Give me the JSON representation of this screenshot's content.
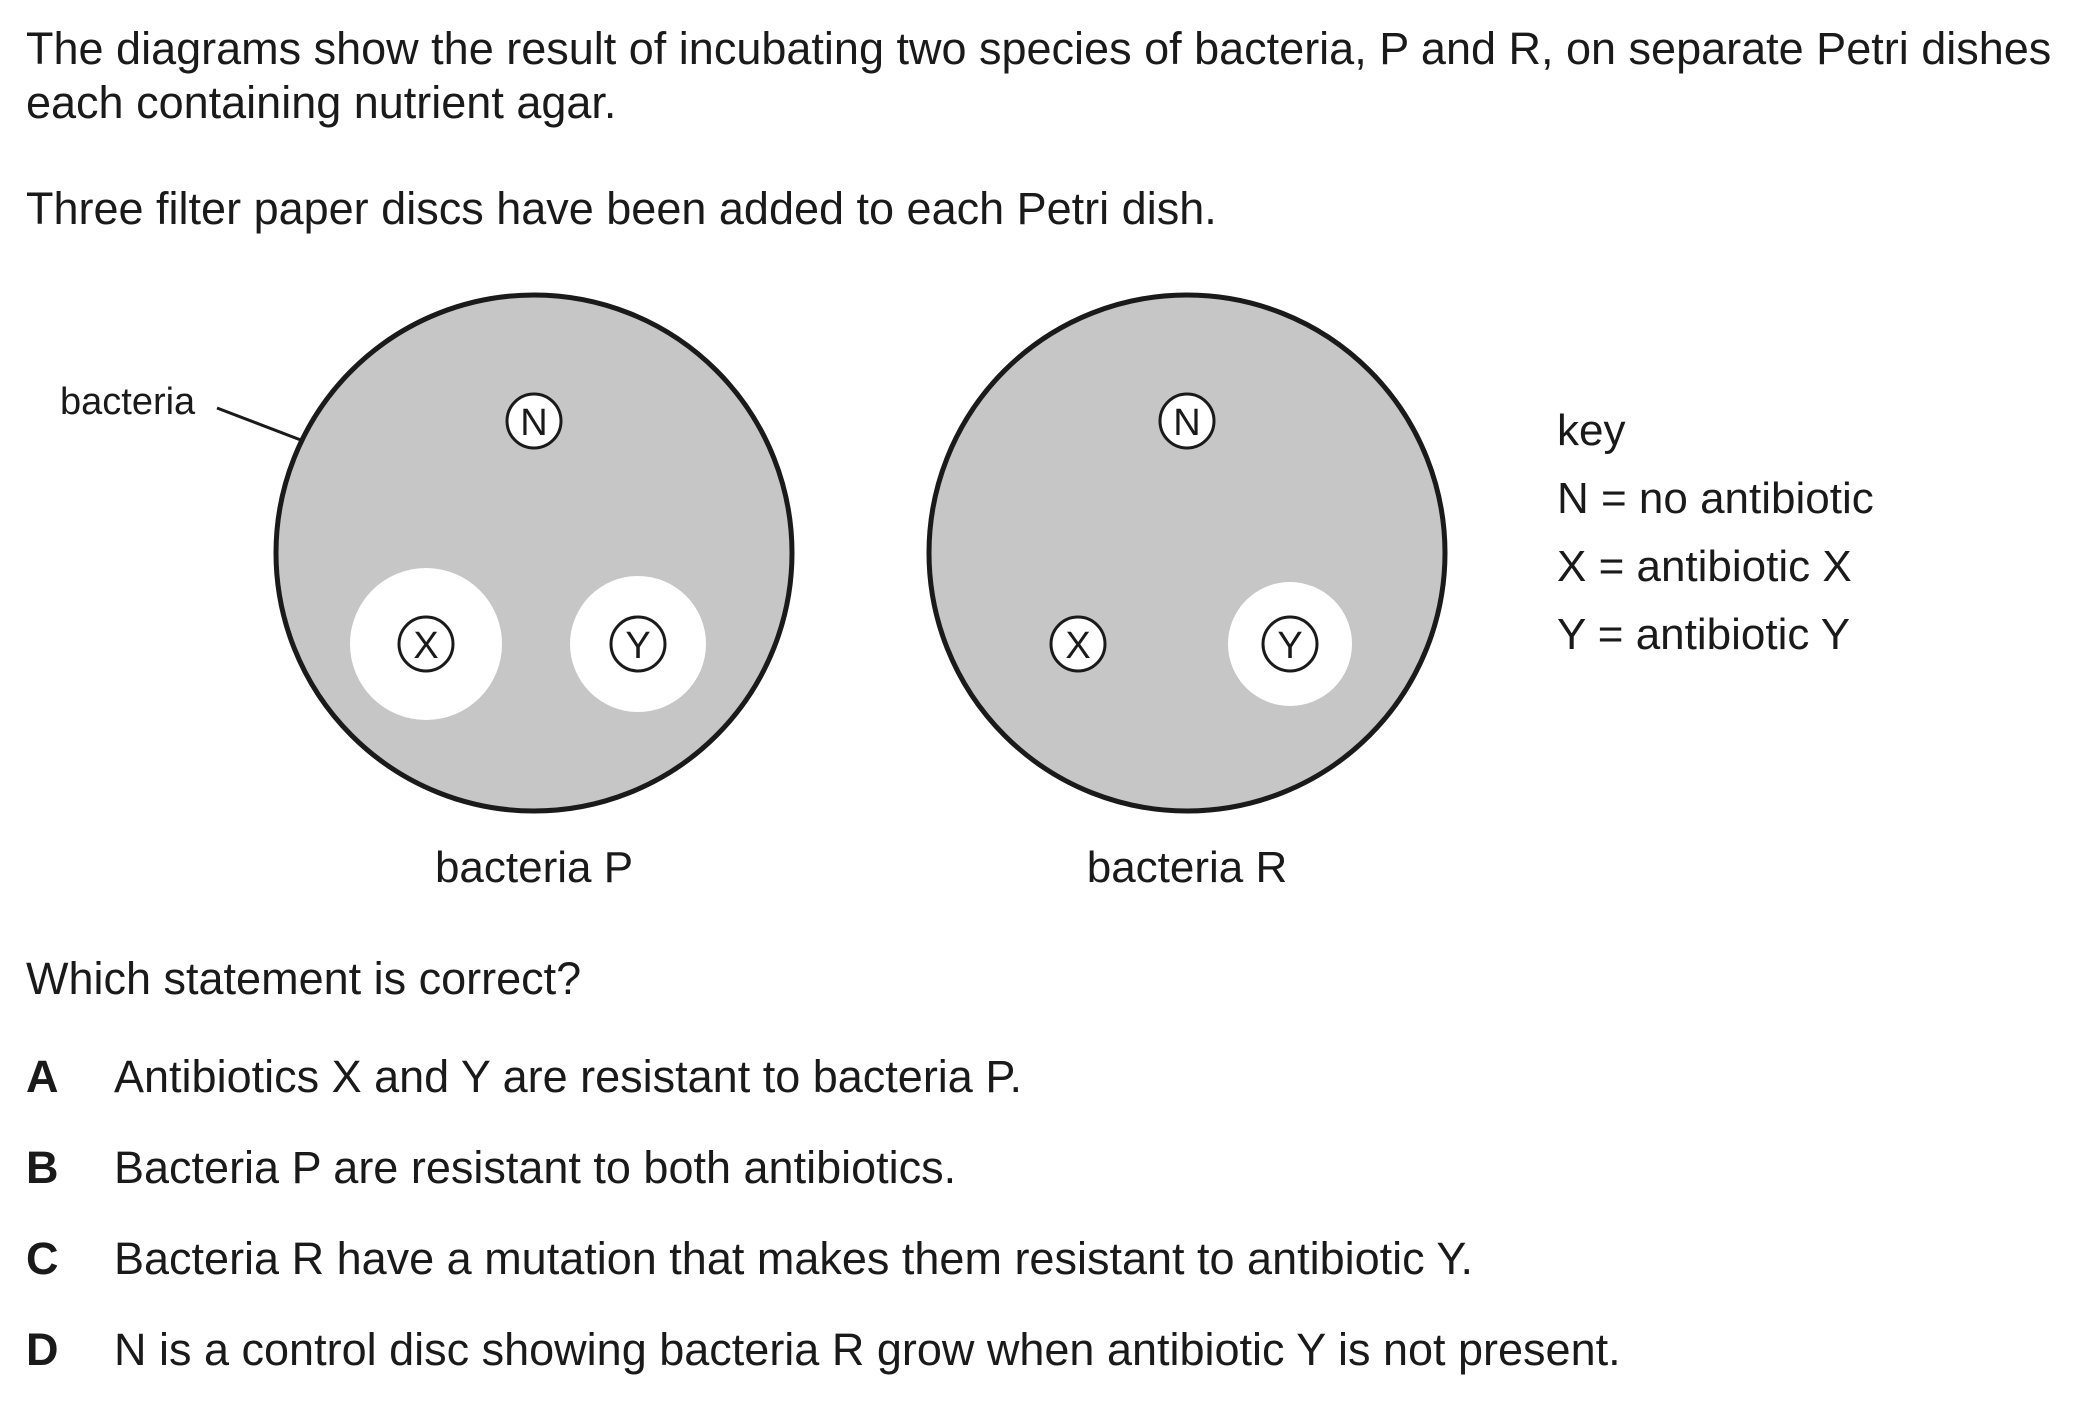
{
  "intro": {
    "line1": "The diagrams show the result of incubating two species of bacteria, P and R, on separate Petri dishes each containing nutrient agar.",
    "line2": "Three filter paper discs have been added to each Petri dish."
  },
  "diagram": {
    "pointer_label": "bacteria",
    "dishes": [
      {
        "caption": "bacteria P",
        "discs": [
          "N",
          "X",
          "Y"
        ]
      },
      {
        "caption": "bacteria R",
        "discs": [
          "N",
          "X",
          "Y"
        ]
      }
    ],
    "key": {
      "title": "key",
      "entries": [
        "N = no antibiotic",
        "X = antibiotic X",
        "Y = antibiotic Y"
      ]
    },
    "colors": {
      "bacteria_lawn": "#c6c6c6",
      "clear_zone": "#ffffff",
      "outline": "#1a1a1a"
    }
  },
  "question": "Which statement is correct?",
  "options": [
    {
      "letter": "A",
      "text": "Antibiotics X and Y are resistant to bacteria P."
    },
    {
      "letter": "B",
      "text": "Bacteria P are resistant to both antibiotics."
    },
    {
      "letter": "C",
      "text": "Bacteria R have a mutation that makes them resistant to antibiotic Y."
    },
    {
      "letter": "D",
      "text": "N is a control disc showing bacteria R grow when antibiotic Y is not present."
    }
  ]
}
